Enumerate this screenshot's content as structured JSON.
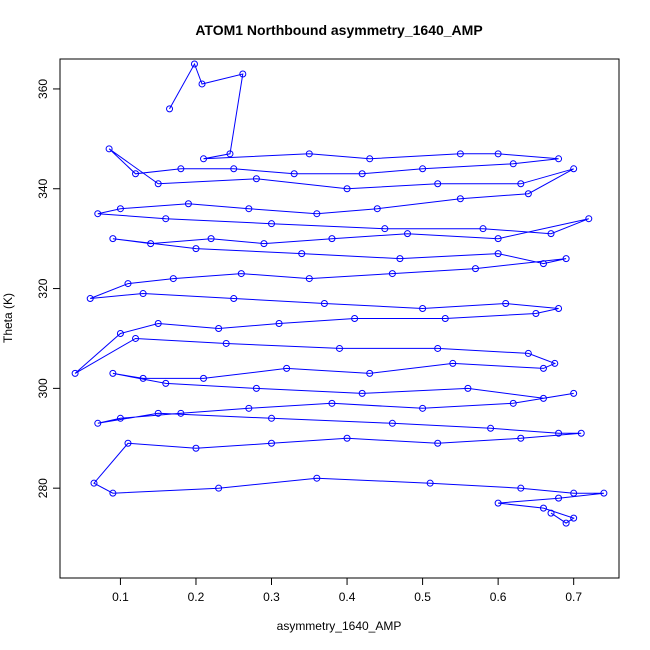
{
  "chart_data": {
    "type": "line",
    "title": "ATOM1 Northbound asymmetry_1640_AMP",
    "xlabel": "asymmetry_1640_AMP",
    "ylabel": "Theta (K)",
    "xlim": [
      0.02,
      0.76
    ],
    "ylim": [
      262,
      366
    ],
    "x_ticks": [
      0.1,
      0.2,
      0.3,
      0.4,
      0.5,
      0.6,
      0.7
    ],
    "x_tick_labels": [
      "0.1",
      "0.2",
      "0.3",
      "0.4",
      "0.5",
      "0.6",
      "0.7"
    ],
    "y_ticks": [
      280,
      300,
      320,
      340,
      360
    ],
    "y_tick_labels": [
      "280",
      "300",
      "320",
      "340",
      "360"
    ],
    "grid": false,
    "series": [
      {
        "color": "#0000ff",
        "markers": "open-circle",
        "x": [
          0.165,
          0.198,
          0.208,
          0.262,
          0.245,
          0.21,
          0.35,
          0.43,
          0.55,
          0.6,
          0.68,
          0.62,
          0.5,
          0.42,
          0.33,
          0.25,
          0.18,
          0.12,
          0.085,
          0.15,
          0.28,
          0.4,
          0.52,
          0.63,
          0.7,
          0.64,
          0.55,
          0.44,
          0.36,
          0.27,
          0.19,
          0.1,
          0.07,
          0.16,
          0.3,
          0.45,
          0.58,
          0.67,
          0.72,
          0.6,
          0.48,
          0.38,
          0.29,
          0.22,
          0.14,
          0.09,
          0.2,
          0.34,
          0.47,
          0.6,
          0.66,
          0.69,
          0.57,
          0.46,
          0.35,
          0.26,
          0.17,
          0.11,
          0.06,
          0.13,
          0.25,
          0.37,
          0.5,
          0.61,
          0.68,
          0.65,
          0.53,
          0.41,
          0.31,
          0.23,
          0.15,
          0.1,
          0.04,
          0.12,
          0.24,
          0.39,
          0.52,
          0.64,
          0.675,
          0.66,
          0.54,
          0.43,
          0.32,
          0.21,
          0.13,
          0.09,
          0.16,
          0.28,
          0.42,
          0.56,
          0.66,
          0.7,
          0.62,
          0.5,
          0.38,
          0.27,
          0.18,
          0.1,
          0.07,
          0.15,
          0.3,
          0.46,
          0.59,
          0.68,
          0.71,
          0.63,
          0.52,
          0.4,
          0.3,
          0.2,
          0.11,
          0.065,
          0.09,
          0.23,
          0.36,
          0.51,
          0.63,
          0.7,
          0.74,
          0.68,
          0.6,
          0.66,
          0.7,
          0.69,
          0.67
        ],
        "y": [
          356,
          365,
          361,
          363,
          347,
          346,
          347,
          346,
          347,
          347,
          346,
          345,
          344,
          343,
          343,
          344,
          344,
          343,
          348,
          341,
          342,
          340,
          341,
          341,
          344,
          339,
          338,
          336,
          335,
          336,
          337,
          336,
          335,
          334,
          333,
          332,
          332,
          331,
          334,
          330,
          331,
          330,
          329,
          330,
          329,
          330,
          328,
          327,
          326,
          327,
          325,
          326,
          324,
          323,
          322,
          323,
          322,
          321,
          318,
          319,
          318,
          317,
          316,
          317,
          316,
          315,
          314,
          314,
          313,
          312,
          313,
          311,
          303,
          310,
          309,
          308,
          308,
          307,
          305,
          304,
          305,
          303,
          304,
          302,
          302,
          303,
          301,
          300,
          299,
          300,
          298,
          299,
          297,
          296,
          297,
          296,
          295,
          294,
          293,
          295,
          294,
          293,
          292,
          291,
          291,
          290,
          289,
          290,
          289,
          288,
          289,
          281,
          279,
          280,
          282,
          281,
          280,
          279,
          279,
          278,
          277,
          276,
          274,
          273,
          275
        ]
      }
    ]
  }
}
